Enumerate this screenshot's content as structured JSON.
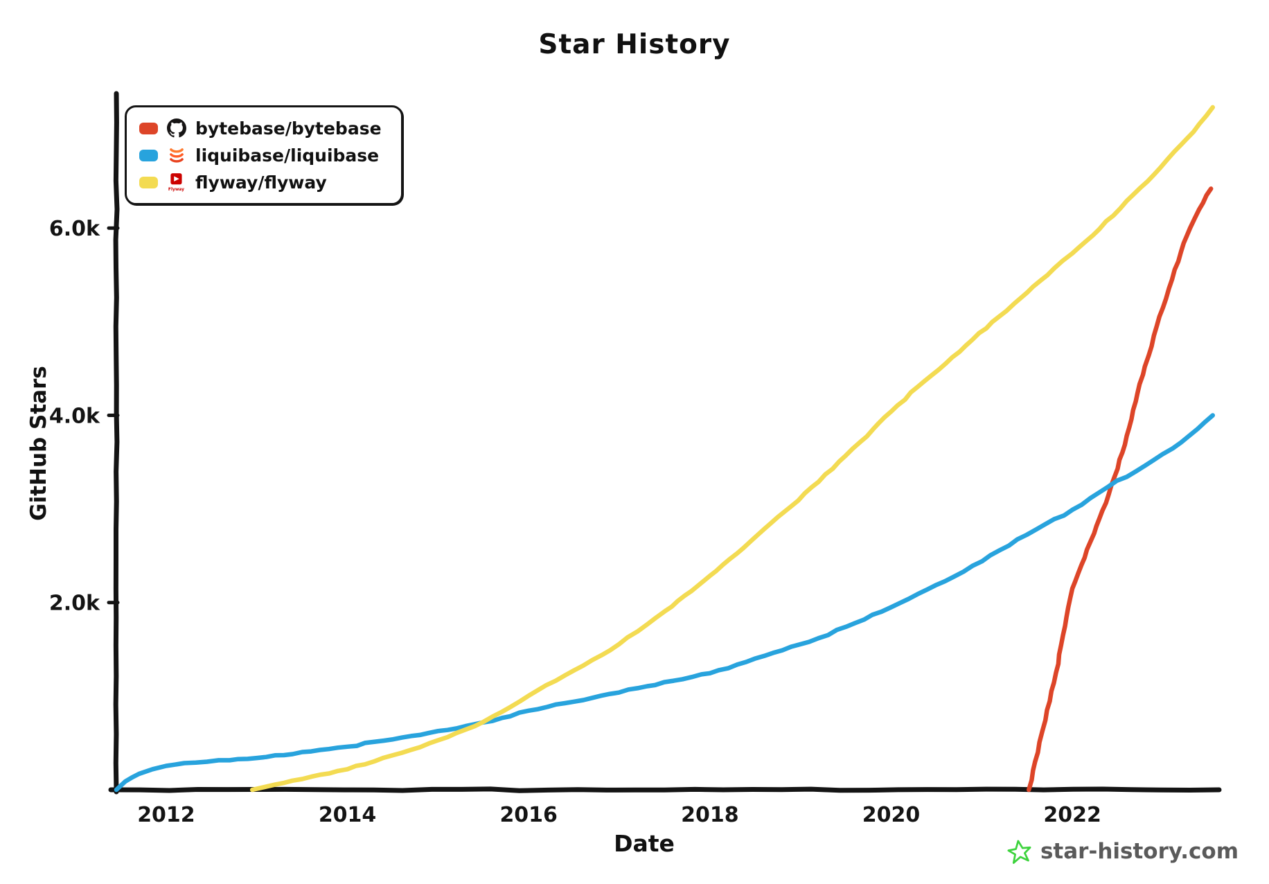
{
  "title": "Star History",
  "axes": {
    "x_label": "Date",
    "y_label": "GitHub Stars"
  },
  "legend": {
    "items": [
      {
        "label": "bytebase/bytebase",
        "color": "#dd4528",
        "icon": "github-icon"
      },
      {
        "label": "liquibase/liquibase",
        "color": "#28a3dd",
        "icon": "liquibase-icon"
      },
      {
        "label": "flyway/flyway",
        "color": "#f3db52",
        "icon": "flyway-icon"
      }
    ]
  },
  "watermark": {
    "text": "star-history.com",
    "star_color": "#3dd33d",
    "text_color": "#5a5a5a"
  },
  "chart_data": {
    "type": "line",
    "title": "Star History",
    "xlabel": "Date",
    "ylabel": "GitHub Stars",
    "units": "GitHub stars",
    "xlim": [
      2011.45,
      2023.62
    ],
    "ylim": [
      0,
      7400
    ],
    "x_ticks": [
      2012,
      2014,
      2016,
      2018,
      2020,
      2022
    ],
    "y_ticks": [
      {
        "value": 2000,
        "label": "2.0k"
      },
      {
        "value": 4000,
        "label": "4.0k"
      },
      {
        "value": 6000,
        "label": "6.0k"
      }
    ],
    "grid": false,
    "legend_position": "top-left",
    "series": [
      {
        "name": "bytebase/bytebase",
        "color": "#dd4528",
        "points": [
          [
            2021.52,
            0
          ],
          [
            2021.62,
            400
          ],
          [
            2021.72,
            850
          ],
          [
            2021.82,
            1250
          ],
          [
            2021.92,
            1750
          ],
          [
            2022.0,
            2150
          ],
          [
            2022.1,
            2400
          ],
          [
            2022.2,
            2650
          ],
          [
            2022.3,
            2900
          ],
          [
            2022.4,
            3150
          ],
          [
            2022.5,
            3430
          ],
          [
            2022.6,
            3780
          ],
          [
            2022.7,
            4150
          ],
          [
            2022.8,
            4520
          ],
          [
            2022.9,
            4850
          ],
          [
            2023.0,
            5150
          ],
          [
            2023.1,
            5450
          ],
          [
            2023.2,
            5750
          ],
          [
            2023.3,
            6000
          ],
          [
            2023.4,
            6200
          ],
          [
            2023.48,
            6350
          ],
          [
            2023.53,
            6420
          ]
        ]
      },
      {
        "name": "liquibase/liquibase",
        "color": "#28a3dd",
        "points": [
          [
            2011.45,
            0
          ],
          [
            2011.55,
            90
          ],
          [
            2011.7,
            170
          ],
          [
            2011.85,
            220
          ],
          [
            2012.0,
            255
          ],
          [
            2012.2,
            285
          ],
          [
            2012.45,
            300
          ],
          [
            2012.7,
            315
          ],
          [
            2013.0,
            340
          ],
          [
            2013.3,
            370
          ],
          [
            2013.6,
            410
          ],
          [
            2014.0,
            460
          ],
          [
            2014.4,
            525
          ],
          [
            2014.8,
            585
          ],
          [
            2015.2,
            655
          ],
          [
            2015.6,
            735
          ],
          [
            2016.0,
            845
          ],
          [
            2016.4,
            925
          ],
          [
            2016.8,
            1005
          ],
          [
            2017.2,
            1085
          ],
          [
            2017.6,
            1165
          ],
          [
            2018.0,
            1245
          ],
          [
            2018.4,
            1365
          ],
          [
            2018.8,
            1490
          ],
          [
            2019.2,
            1620
          ],
          [
            2019.6,
            1780
          ],
          [
            2020.0,
            1950
          ],
          [
            2020.4,
            2140
          ],
          [
            2020.8,
            2330
          ],
          [
            2021.2,
            2560
          ],
          [
            2021.6,
            2780
          ],
          [
            2022.0,
            2990
          ],
          [
            2022.4,
            3240
          ],
          [
            2022.8,
            3460
          ],
          [
            2023.2,
            3710
          ],
          [
            2023.55,
            4000
          ]
        ]
      },
      {
        "name": "flyway/flyway",
        "color": "#f3db52",
        "points": [
          [
            2012.95,
            0
          ],
          [
            2013.2,
            55
          ],
          [
            2013.5,
            115
          ],
          [
            2013.8,
            175
          ],
          [
            2014.0,
            220
          ],
          [
            2014.3,
            305
          ],
          [
            2014.6,
            395
          ],
          [
            2014.9,
            495
          ],
          [
            2015.2,
            605
          ],
          [
            2015.5,
            725
          ],
          [
            2015.8,
            885
          ],
          [
            2016.0,
            1005
          ],
          [
            2016.3,
            1165
          ],
          [
            2016.6,
            1325
          ],
          [
            2016.9,
            1490
          ],
          [
            2017.2,
            1690
          ],
          [
            2017.5,
            1905
          ],
          [
            2017.8,
            2125
          ],
          [
            2018.0,
            2285
          ],
          [
            2018.3,
            2525
          ],
          [
            2018.6,
            2785
          ],
          [
            2018.9,
            3030
          ],
          [
            2019.2,
            3290
          ],
          [
            2019.5,
            3570
          ],
          [
            2019.8,
            3850
          ],
          [
            2020.0,
            4040
          ],
          [
            2020.3,
            4310
          ],
          [
            2020.6,
            4550
          ],
          [
            2020.9,
            4810
          ],
          [
            2021.2,
            5060
          ],
          [
            2021.5,
            5310
          ],
          [
            2021.8,
            5570
          ],
          [
            2022.0,
            5730
          ],
          [
            2022.3,
            5990
          ],
          [
            2022.6,
            6290
          ],
          [
            2022.9,
            6570
          ],
          [
            2023.2,
            6890
          ],
          [
            2023.4,
            7110
          ],
          [
            2023.55,
            7290
          ]
        ]
      }
    ]
  }
}
